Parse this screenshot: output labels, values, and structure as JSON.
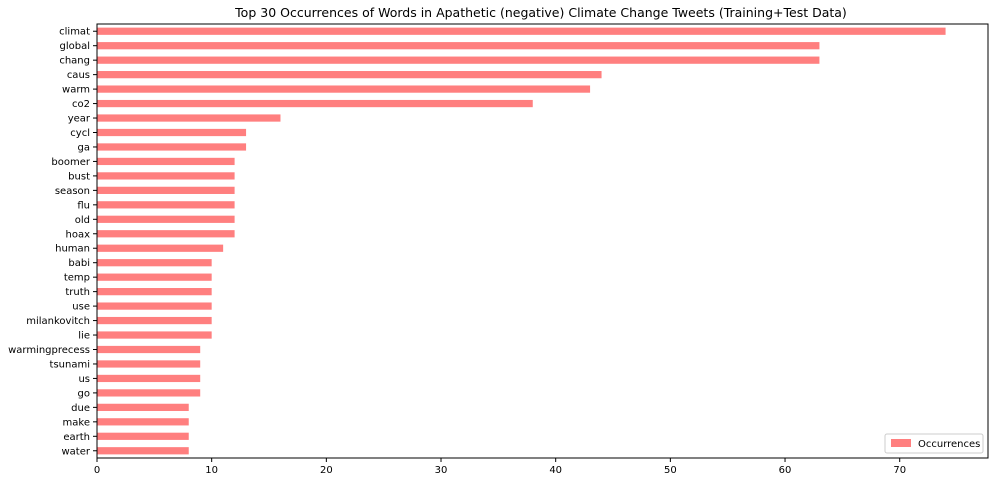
{
  "chart_data": {
    "type": "bar",
    "orientation": "horizontal",
    "title": "Top 30 Occurrences of Words in Apathetic (negative) Climate Change Tweets (Training+Test Data)",
    "xlabel": "",
    "ylabel": "",
    "xlim": [
      0,
      77.7
    ],
    "xticks": [
      0,
      10,
      20,
      30,
      40,
      50,
      60,
      70
    ],
    "grid": false,
    "legend_position": "bottom-right",
    "bar_color": "#ff7f7f",
    "categories": [
      "climat",
      "global",
      "chang",
      "caus",
      "warm",
      "co2",
      "year",
      "cycl",
      "ga",
      "boomer",
      "bust",
      "season",
      "flu",
      "old",
      "hoax",
      "human",
      "babi",
      "temp",
      "truth",
      "use",
      "milankovitch",
      "lie",
      "warmingprecess",
      "tsunami",
      "us",
      "go",
      "due",
      "make",
      "earth",
      "water"
    ],
    "series": [
      {
        "name": "Occurrences",
        "values": [
          74,
          63,
          63,
          44,
          43,
          38,
          16,
          13,
          13,
          12,
          12,
          12,
          12,
          12,
          12,
          11,
          10,
          10,
          10,
          10,
          10,
          10,
          9,
          9,
          9,
          9,
          8,
          8,
          8,
          8
        ]
      }
    ]
  }
}
